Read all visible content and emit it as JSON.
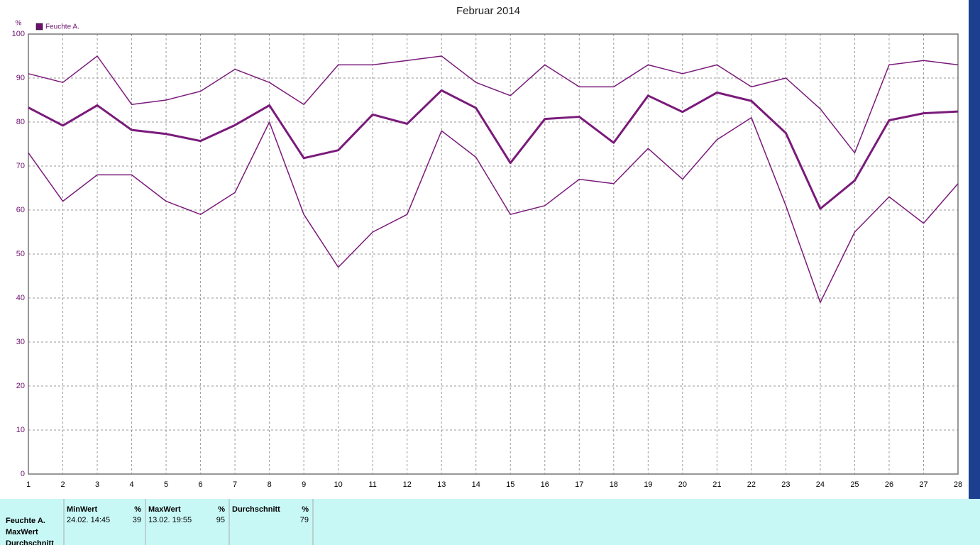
{
  "chart_data": {
    "type": "line",
    "title": "Februar 2014",
    "y_unit": "%",
    "legend": {
      "label": "Feuchte A.",
      "color": "#6e0f6e"
    },
    "x": [
      1,
      2,
      3,
      4,
      5,
      6,
      7,
      8,
      9,
      10,
      11,
      12,
      13,
      14,
      15,
      16,
      17,
      18,
      19,
      20,
      21,
      22,
      23,
      24,
      25,
      26,
      27,
      28
    ],
    "series": [
      {
        "color": "#7a1a7a",
        "line_width": 1.5,
        "values": [
          91,
          89,
          95,
          84,
          85,
          87,
          92,
          89,
          84,
          93,
          93,
          94,
          95,
          89,
          86,
          93,
          88,
          88,
          93,
          91,
          93,
          88,
          90,
          83,
          73,
          93,
          94,
          93
        ]
      },
      {
        "color": "#7a1a7a",
        "line_width": 3,
        "values": [
          83.3,
          79.2,
          83.8,
          78.2,
          77.3,
          75.7,
          79.3,
          83.8,
          71.8,
          73.6,
          81.7,
          79.6,
          87.2,
          83.2,
          70.7,
          80.7,
          81.2,
          75.3,
          86.0,
          82.3,
          86.7,
          84.8,
          77.5,
          60.3,
          66.7,
          80.4,
          82.0,
          82.4
        ]
      },
      {
        "color": "#7a1a7a",
        "line_width": 1.5,
        "values": [
          73,
          62,
          68,
          68,
          62,
          59,
          64,
          80,
          59,
          47,
          55,
          59,
          78,
          72,
          59,
          61,
          67,
          66,
          74,
          67,
          76,
          81,
          61,
          39,
          55,
          63,
          57,
          66
        ]
      }
    ],
    "xlim": [
      1,
      28
    ],
    "xticks": [
      1,
      2,
      3,
      4,
      5,
      6,
      7,
      8,
      9,
      10,
      11,
      12,
      13,
      14,
      15,
      16,
      17,
      18,
      19,
      20,
      21,
      22,
      23,
      24,
      25,
      26,
      27,
      28
    ],
    "ylim": [
      0,
      100
    ],
    "yticks": [
      0,
      10,
      20,
      30,
      40,
      50,
      60,
      70,
      80,
      90,
      100
    ],
    "grid": true
  },
  "stats": {
    "row_labels": [
      "Feuchte A.",
      "MaxWert",
      "Durchschnitt"
    ],
    "columns": [
      {
        "header": "MinWert",
        "unit": "%",
        "time": "24.02.  14:45",
        "value": "39"
      },
      {
        "header": "MaxWert",
        "unit": "%",
        "time": "13.02.  19:55",
        "value": "95"
      },
      {
        "header": "Durchschnitt",
        "unit": "%",
        "value": "79"
      }
    ]
  }
}
